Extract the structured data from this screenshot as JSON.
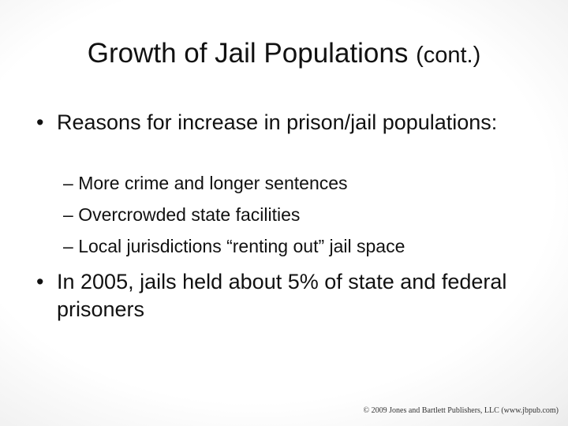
{
  "slide": {
    "title_main": "Growth of Jail Populations",
    "title_suffix": "(cont.)",
    "bullets": [
      {
        "marker": "•",
        "text": "Reasons for increase in prison/jail populations:",
        "sub_items": [
          {
            "marker": "–",
            "text": "More crime and longer sentences"
          },
          {
            "marker": "–",
            "text": "Overcrowded state facilities"
          },
          {
            "marker": "–",
            "text": "Local jurisdictions “renting out” jail space"
          }
        ]
      },
      {
        "marker": "•",
        "text": "In 2005, jails held about 5% of state and federal prisoners"
      }
    ],
    "footer": "© 2009 Jones and Bartlett Publishers, LLC (www.jbpub.com)"
  }
}
